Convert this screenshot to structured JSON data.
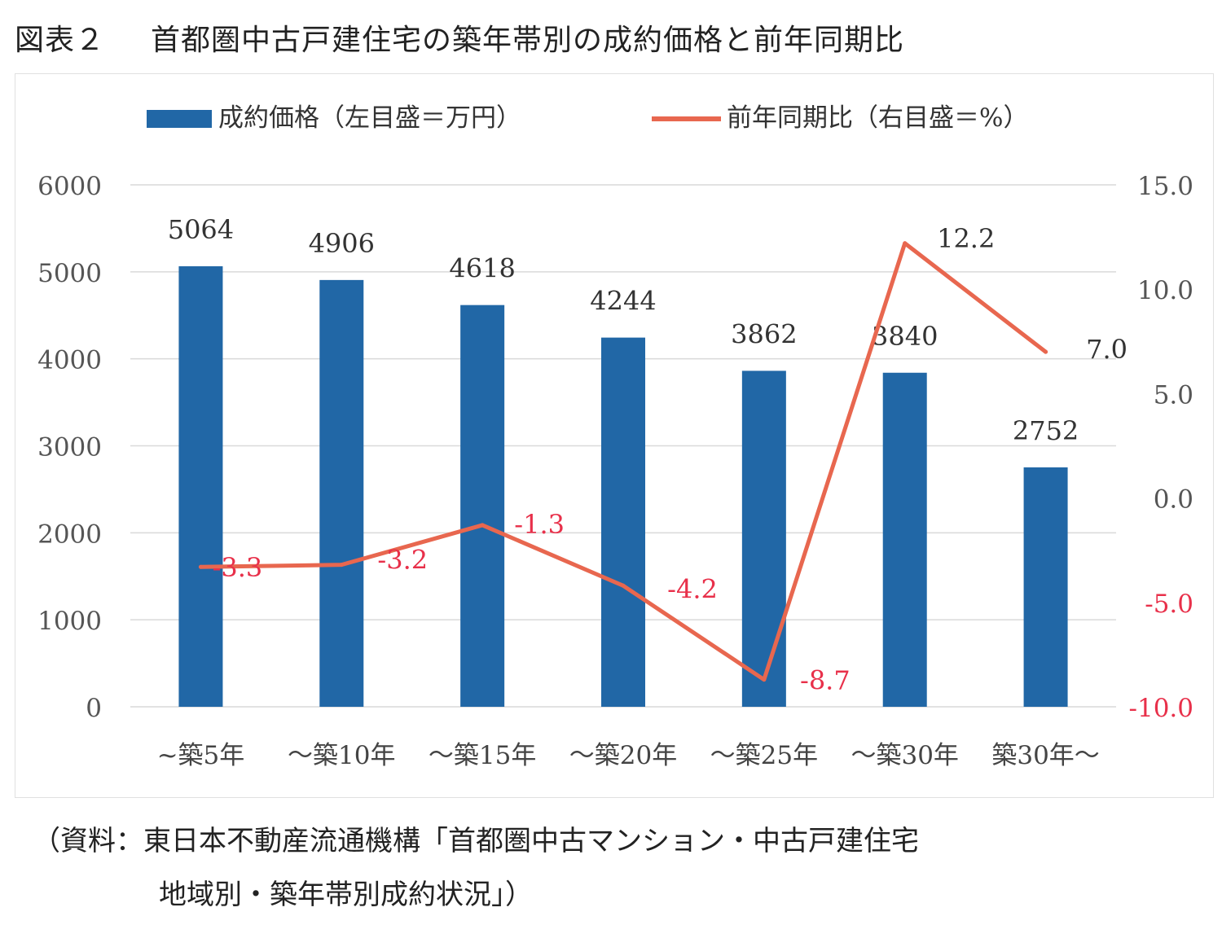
{
  "figure": {
    "number": "図表２",
    "title": "首都圏中古戸建住宅の築年帯別の成約価格と前年同期比"
  },
  "source": {
    "line1": "（資料：東日本不動産流通機構「首都圏中古マンション・中古戸建住宅",
    "line2": "地域別・築年帯別成約状況」）"
  },
  "colors": {
    "bar": "#2167a6",
    "line": "#e8674f",
    "negative_label": "#e8304a",
    "grid": "#d9d9d9"
  },
  "chart_data": {
    "type": "bar",
    "categories": [
      "~築5年",
      "～築10年",
      "～築15年",
      "～築20年",
      "～築25年",
      "～築30年",
      "築30年～"
    ],
    "series": [
      {
        "name": "成約価格（左目盛＝万円）",
        "type": "bar",
        "axis": "left",
        "values": [
          5064,
          4906,
          4618,
          4244,
          3862,
          3840,
          2752
        ],
        "labels": [
          "5064",
          "4906",
          "4618",
          "4244",
          "3862",
          "3840",
          "2752"
        ]
      },
      {
        "name": "前年同期比（右目盛＝%）",
        "type": "line",
        "axis": "right",
        "values": [
          -3.3,
          -3.2,
          -1.3,
          -4.2,
          -8.7,
          12.2,
          7.0
        ],
        "labels": [
          "-3.3",
          "-3.2",
          "-1.3",
          "-4.2",
          "-8.7",
          "12.2",
          "7.0"
        ]
      }
    ],
    "left_axis": {
      "ylim": [
        0,
        6000
      ],
      "ticks": [
        "0",
        "1000",
        "2000",
        "3000",
        "4000",
        "5000",
        "6000"
      ],
      "tick_values": [
        0,
        1000,
        2000,
        3000,
        4000,
        5000,
        6000
      ]
    },
    "right_axis": {
      "ylim": [
        -10,
        15
      ],
      "ticks": [
        "-10.0",
        "-5.0",
        "0.0",
        "5.0",
        "10.0",
        "15.0"
      ],
      "tick_values": [
        -10,
        -5,
        0,
        5,
        10,
        15
      ]
    },
    "legend_position": "top",
    "grid": true
  }
}
